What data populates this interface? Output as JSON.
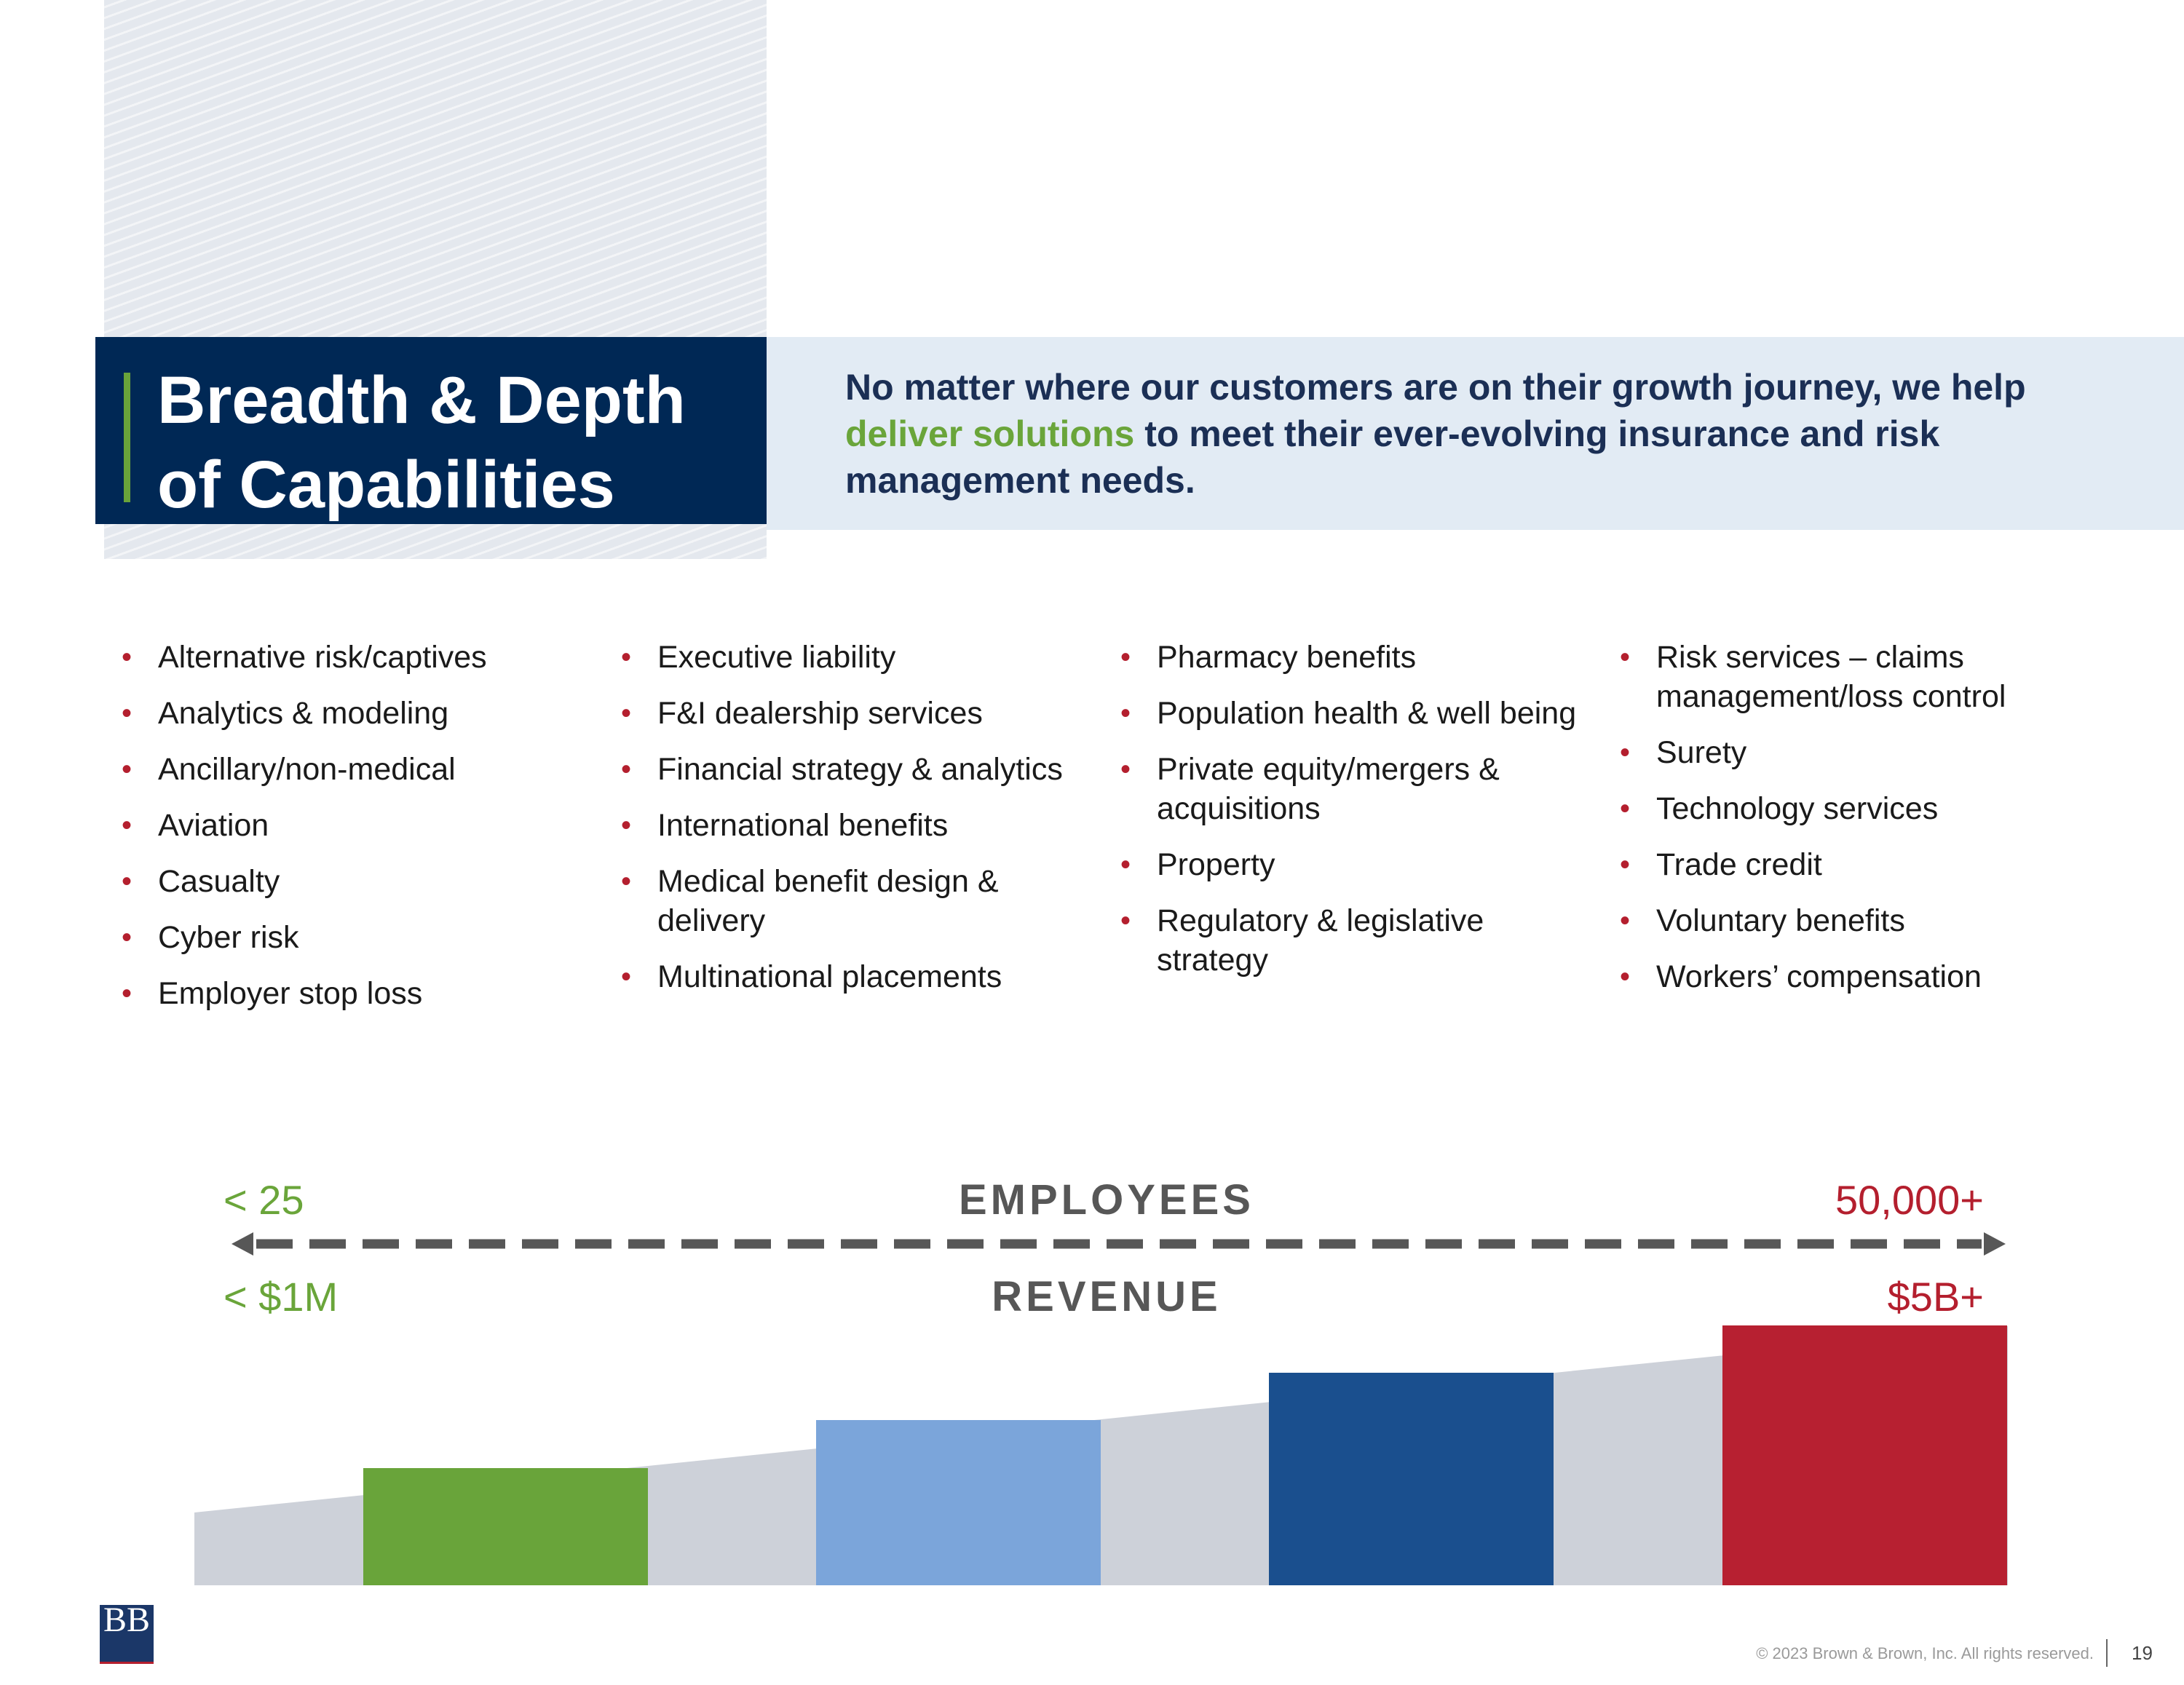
{
  "title": "Breadth & Depth of Capabilities",
  "tagline": {
    "before": "No matter where our customers are on their growth journey, we help ",
    "highlight": "deliver solutions",
    "after": " to meet their ever-evolving insurance and risk management needs."
  },
  "columns": [
    [
      "Alternative risk/captives",
      "Analytics & modeling",
      "Ancillary/non-medical",
      "Aviation",
      "Casualty",
      "Cyber risk",
      "Employer stop loss"
    ],
    [
      "Executive liability",
      "F&I dealership services",
      "Financial strategy & analytics",
      "International benefits",
      "Medical benefit design & delivery",
      "Multinational placements"
    ],
    [
      "Pharmacy benefits",
      "Population health & well being",
      "Private equity/mergers & acquisitions",
      "Property",
      "Regulatory & legislative strategy"
    ],
    [
      "Risk services – claims management/loss control",
      "Surety",
      "Technology services",
      "Trade credit",
      "Voluntary benefits",
      "Workers’ compensation"
    ]
  ],
  "scale": {
    "employees_low": "< 25",
    "employees_label": "EMPLOYEES",
    "employees_high": "50,000+",
    "revenue_low": "< $1M",
    "revenue_label": "REVENUE",
    "revenue_high": "$5B+"
  },
  "growth_bar_colors": [
    "#69a43a",
    "#7ba5da",
    "#1a4f8e",
    "#b72031"
  ],
  "colors": {
    "navy": "#002855",
    "green": "#6aa53a",
    "red": "#b41f2e",
    "light_blue_bg": "#e2ebf4",
    "gray": "#575757"
  },
  "logo": "BB",
  "footer": {
    "copyright": "© 2023 Brown & Brown, Inc. All rights reserved.",
    "page": "19"
  }
}
